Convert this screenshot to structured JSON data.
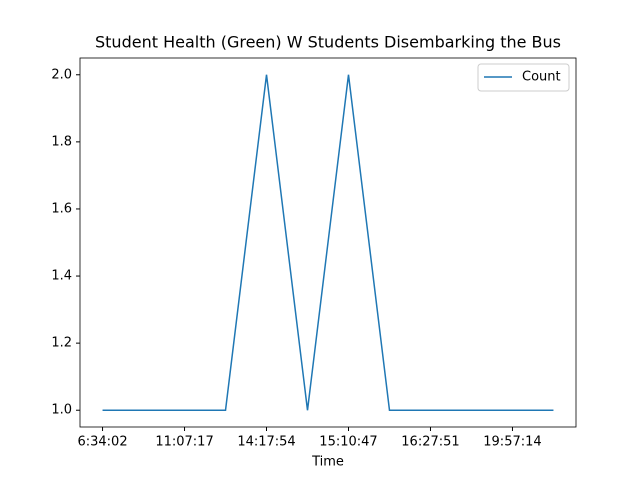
{
  "chart_data": {
    "type": "line",
    "title": "Student Health (Green) W Students Disembarking the Bus",
    "x_label": "Time",
    "categories": [
      "6:34:02",
      null,
      "11:07:17",
      null,
      "14:17:54",
      null,
      "15:10:47",
      null,
      "16:27:51",
      null,
      "19:57:14",
      null
    ],
    "series": [
      {
        "name": "Count",
        "color": "#1f77b4",
        "values": [
          1,
          1,
          1,
          1,
          2,
          1,
          2,
          1,
          1,
          1,
          1,
          1
        ]
      }
    ],
    "ylim": [
      0.95,
      2.05
    ],
    "yticks": [
      {
        "value": 1,
        "label": "1.0"
      },
      {
        "value": 1.2,
        "label": "1.2"
      },
      {
        "value": 1.4,
        "label": "1.4"
      },
      {
        "value": 1.6,
        "label": "1.6"
      },
      {
        "value": 1.8,
        "label": "1.8"
      },
      {
        "value": 2,
        "label": "2.0"
      }
    ],
    "legend": "upper right",
    "grid": false
  }
}
